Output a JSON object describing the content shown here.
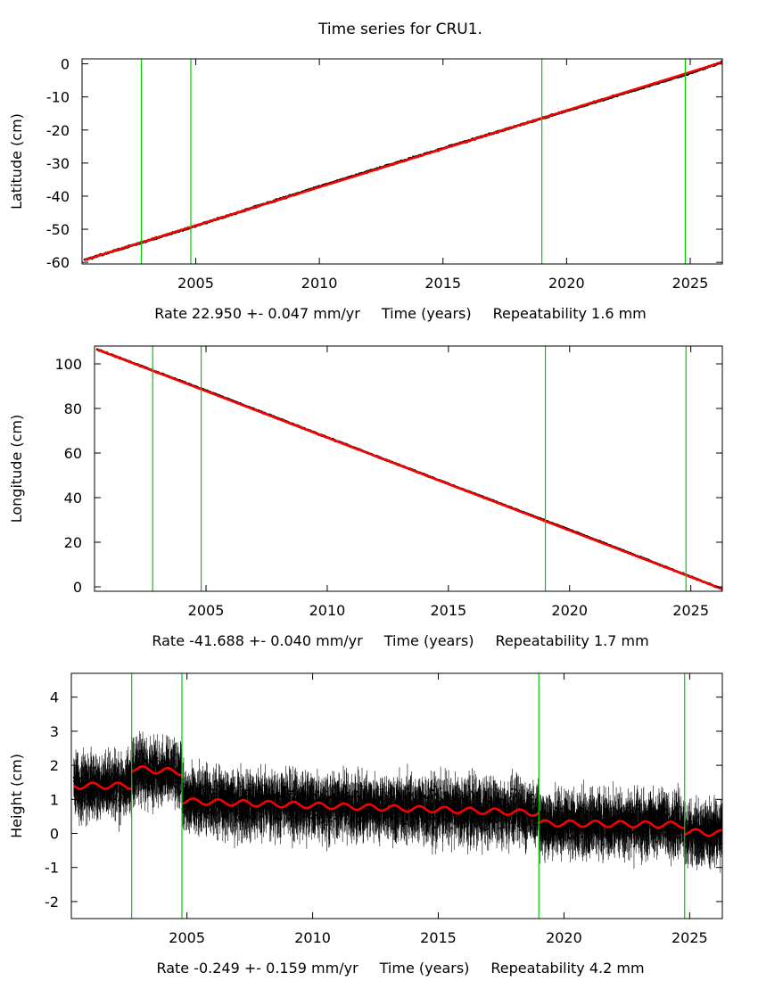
{
  "figure": {
    "title": "Time series for CRU1."
  },
  "colors": {
    "data": "#000000",
    "model": "#ff0000",
    "event_line": "#00cc00",
    "frame": "#000000",
    "background": "#ffffff"
  },
  "chart_data": [
    {
      "type": "scatter",
      "component": "latitude",
      "ylabel": "Latitude (cm)",
      "xlabel": "Time (years)",
      "xlim": [
        2000.4,
        2026.3
      ],
      "ylim": [
        -60.5,
        1.5
      ],
      "xticks": [
        2005,
        2010,
        2015,
        2020,
        2025
      ],
      "yticks": [
        0,
        -10,
        -20,
        -30,
        -40,
        -50,
        -60
      ],
      "rate_text": "Rate 22.950 +- 0.047 mm/yr",
      "repeatability_text": "Repeatability 1.6 mm",
      "events": [
        2002.8,
        2004.8,
        2019.0,
        2024.8
      ],
      "series": [
        {
          "name": "daily position",
          "kind": "points",
          "x": [
            2000.5,
            2005,
            2010,
            2015,
            2020,
            2025,
            2026.3
          ],
          "y": [
            -59.3,
            -49.0,
            -37.1,
            -25.6,
            -14.2,
            -2.8,
            0.5
          ],
          "noise_cm": 0.25
        },
        {
          "name": "model fit",
          "kind": "line",
          "x": [
            2000.5,
            2026.3
          ],
          "y": [
            -59.3,
            0.5
          ]
        }
      ]
    },
    {
      "type": "scatter",
      "component": "longitude",
      "ylabel": "Longitude (cm)",
      "xlabel": "Time (years)",
      "xlim": [
        2000.4,
        2026.3
      ],
      "ylim": [
        -2,
        108
      ],
      "xticks": [
        2005,
        2010,
        2015,
        2020,
        2025
      ],
      "yticks": [
        0,
        20,
        40,
        60,
        80,
        100
      ],
      "rate_text": "Rate -41.688 +- 0.040 mm/yr",
      "repeatability_text": "Repeatability 1.7 mm",
      "events": [
        2002.8,
        2004.8,
        2019.0,
        2024.8
      ],
      "series": [
        {
          "name": "daily position",
          "kind": "points",
          "x": [
            2000.5,
            2005,
            2010,
            2015,
            2020,
            2025,
            2026.3
          ],
          "y": [
            106.5,
            88.0,
            67.0,
            46.2,
            25.5,
            4.5,
            -1.0
          ],
          "noise_cm": 0.3
        },
        {
          "name": "model fit",
          "kind": "line",
          "x": [
            2000.5,
            2026.3
          ],
          "y": [
            106.5,
            -1.0
          ]
        }
      ]
    },
    {
      "type": "scatter",
      "component": "height",
      "ylabel": "Height (cm)",
      "xlabel": "Time (years)",
      "xlim": [
        2000.4,
        2026.3
      ],
      "ylim": [
        -2.5,
        4.7
      ],
      "xticks": [
        2005,
        2010,
        2015,
        2020,
        2025
      ],
      "yticks": [
        4,
        3,
        2,
        1,
        0,
        -1,
        -2
      ],
      "rate_text": "Rate -0.249 +- 0.159 mm/yr",
      "repeatability_text": "Repeatability 4.2 mm",
      "events": [
        2002.8,
        2004.8,
        2019.0,
        2024.8
      ],
      "series": [
        {
          "name": "daily position",
          "kind": "points",
          "x": [
            2000.5,
            2002.8,
            2002.8,
            2004.8,
            2004.8,
            2019.0,
            2019.0,
            2024.8,
            2024.8,
            2026.3
          ],
          "y": [
            1.4,
            1.4,
            1.9,
            1.8,
            0.95,
            0.6,
            0.3,
            0.3,
            0.0,
            0.0
          ],
          "noise_cm": 0.5
        },
        {
          "name": "model fit",
          "kind": "line",
          "segments": [
            {
              "x": [
                2000.5,
                2002.8
              ],
              "y": [
                1.4,
                1.4
              ]
            },
            {
              "x": [
                2002.8,
                2004.8
              ],
              "y": [
                1.9,
                1.8
              ]
            },
            {
              "x": [
                2004.8,
                2019.0
              ],
              "y": [
                0.95,
                0.6
              ]
            },
            {
              "x": [
                2019.0,
                2024.8
              ],
              "y": [
                0.3,
                0.25
              ]
            },
            {
              "x": [
                2024.8,
                2026.3
              ],
              "y": [
                0.05,
                0.0
              ]
            }
          ],
          "seasonal_amplitude_cm": 0.09
        }
      ]
    }
  ]
}
